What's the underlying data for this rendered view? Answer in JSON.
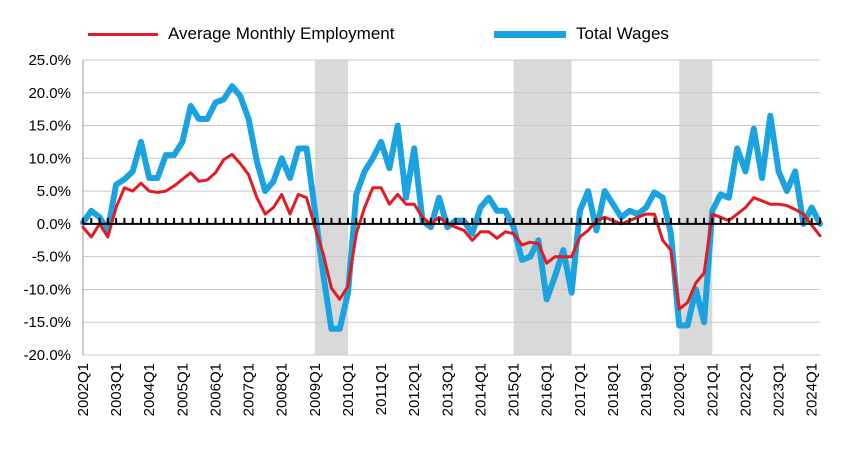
{
  "chart_data": {
    "type": "line",
    "title": "",
    "xlabel": "",
    "ylabel": "",
    "ylim": [
      -20,
      25
    ],
    "y_ticks": [
      -20,
      -15,
      -10,
      -5,
      0,
      5,
      10,
      15,
      20,
      25
    ],
    "y_tick_labels": [
      "-20.0%",
      "-15.0%",
      "-10.0%",
      "-5.0%",
      "0.0%",
      "5.0%",
      "10.0%",
      "15.0%",
      "20.0%",
      "25.0%"
    ],
    "x_tick_labels": [
      "2002Q1",
      "2003Q1",
      "2004Q1",
      "2005Q1",
      "2006Q1",
      "2007Q1",
      "2008Q1",
      "2009Q1",
      "2010Q1",
      "2011Q1",
      "2012Q1",
      "2013Q1",
      "2014Q1",
      "2015Q1",
      "2016Q1",
      "2017Q1",
      "2018Q1",
      "2019Q1",
      "2020Q1",
      "2021Q1",
      "2022Q1",
      "2023Q1",
      "2024Q1"
    ],
    "start_quarter": "2002Q1",
    "grid": "horizontal",
    "legend_position": "top",
    "recession_shading": [
      [
        "2009Q1",
        "2010Q1"
      ],
      [
        "2015Q1",
        "2016Q4"
      ],
      [
        "2020Q1",
        "2021Q1"
      ]
    ],
    "shade_color": "#d9d9d9",
    "series": [
      {
        "name": "Average Monthly Employment",
        "color": "#e31b23",
        "values": [
          -0.5,
          -2.0,
          0.0,
          -2.0,
          2.5,
          5.5,
          5.0,
          6.2,
          5.0,
          4.8,
          5.0,
          5.8,
          6.8,
          7.8,
          6.5,
          6.7,
          7.8,
          9.8,
          10.6,
          9.2,
          7.5,
          4.0,
          1.5,
          2.5,
          4.5,
          1.5,
          4.5,
          4.0,
          -0.5,
          -4.5,
          -9.8,
          -11.5,
          -9.5,
          -1.5,
          2.5,
          5.5,
          5.5,
          3.0,
          4.5,
          3.0,
          3.0,
          1.0,
          0.0,
          1.0,
          0.0,
          -0.5,
          -1.0,
          -2.5,
          -1.2,
          -1.2,
          -2.2,
          -1.2,
          -1.5,
          -3.2,
          -2.8,
          -3.0,
          -6.0,
          -5.0,
          -5.0,
          -5.0,
          -2.0,
          -1.0,
          0.5,
          1.0,
          0.5,
          0.0,
          0.5,
          1.0,
          1.5,
          1.5,
          -2.5,
          -4.0,
          -13.0,
          -12.0,
          -9.0,
          -7.5,
          1.5,
          1.0,
          0.5,
          1.5,
          2.5,
          4.0,
          3.5,
          3.0,
          3.0,
          2.8,
          2.2,
          1.5,
          -0.2,
          -1.8
        ]
      },
      {
        "name": "Total Wages",
        "color": "#1aa3e0",
        "values": [
          0.2,
          2.0,
          1.0,
          -1.0,
          6.0,
          6.8,
          8.0,
          12.5,
          7.0,
          7.0,
          10.5,
          10.5,
          12.5,
          18.0,
          16.0,
          16.0,
          18.5,
          19.0,
          21.0,
          19.5,
          16.0,
          9.5,
          5.0,
          6.5,
          10.0,
          7.0,
          11.5,
          11.5,
          2.0,
          -7.5,
          -16.0,
          -16.0,
          -10.5,
          4.5,
          8.0,
          10.0,
          12.5,
          8.5,
          15.0,
          4.0,
          11.5,
          0.5,
          -0.5,
          4.0,
          -0.5,
          0.5,
          0.5,
          -1.5,
          2.5,
          4.0,
          2.0,
          2.0,
          -0.5,
          -5.5,
          -5.0,
          -2.5,
          -11.5,
          -8.0,
          -4.0,
          -10.5,
          2.0,
          5.0,
          -1.0,
          5.0,
          3.0,
          1.0,
          2.0,
          1.5,
          2.5,
          4.8,
          4.0,
          -1.5,
          -15.5,
          -15.5,
          -10.0,
          -15.0,
          2.0,
          4.5,
          4.0,
          11.5,
          8.0,
          14.5,
          7.0,
          16.5,
          8.0,
          5.0,
          8.0,
          0.0,
          2.5,
          0.0
        ]
      }
    ]
  }
}
